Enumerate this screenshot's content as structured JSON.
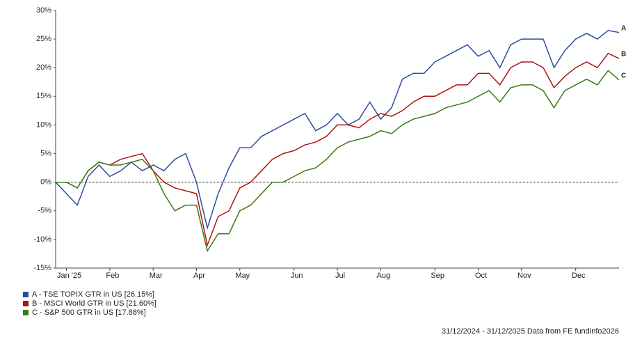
{
  "chart_data": {
    "type": "line",
    "categories": [
      null,
      "Jan '25",
      null,
      null,
      null,
      "Feb",
      null,
      null,
      null,
      "Mar",
      null,
      null,
      null,
      "Apr",
      null,
      null,
      null,
      "May",
      null,
      null,
      null,
      null,
      "Jun",
      null,
      null,
      null,
      "Jul",
      null,
      null,
      null,
      "Aug",
      null,
      null,
      null,
      null,
      "Sep",
      null,
      null,
      null,
      "Oct",
      null,
      null,
      null,
      "Nov",
      null,
      null,
      null,
      null,
      "Dec",
      null,
      null,
      null,
      null
    ],
    "series": [
      {
        "name": "A - TSE TOPIX GTR in US [26.15%]",
        "label": "A",
        "color": "#2d4d9e",
        "values": [
          0,
          -2,
          -4,
          1,
          3,
          1,
          2,
          3.5,
          2,
          3,
          2,
          4,
          5,
          0,
          -8,
          -2,
          2.5,
          6,
          6,
          8,
          9,
          10,
          11,
          12,
          9,
          10,
          12,
          10,
          11,
          14,
          11,
          13,
          18,
          19,
          19,
          21,
          22,
          23,
          24,
          22,
          23,
          20,
          24,
          25,
          25,
          25,
          20,
          23,
          25,
          26,
          25,
          26.5,
          26.15
        ]
      },
      {
        "name": "B - MSCI World GTR in US [21.60%]",
        "label": "B",
        "color": "#b0120f",
        "values": [
          0,
          0,
          -1,
          2,
          3.5,
          3,
          4,
          4.5,
          5,
          2,
          0,
          -1,
          -1.5,
          -2,
          -11,
          -6,
          -5,
          -1,
          0,
          2,
          4,
          5,
          5.5,
          6.5,
          7,
          8,
          10,
          10,
          9.5,
          11,
          12,
          11.5,
          12.5,
          14,
          15,
          15,
          16,
          17,
          17,
          19,
          19,
          17,
          20,
          21,
          21,
          20,
          16.5,
          18.5,
          20,
          21,
          20,
          22.5,
          21.6
        ]
      },
      {
        "name": "C - S&P 500 GTR in US [17.88%]",
        "label": "C",
        "color": "#3a7a12",
        "values": [
          0,
          0,
          -1,
          2,
          3.5,
          3,
          3,
          3.5,
          4,
          2,
          -2,
          -5,
          -4,
          -4,
          -12,
          -9,
          -9,
          -5,
          -4,
          -2,
          0,
          0,
          1,
          2,
          2.5,
          4,
          6,
          7,
          7.5,
          8,
          9,
          8.5,
          10,
          11,
          11.5,
          12,
          13,
          13.5,
          14,
          15,
          16,
          14,
          16.5,
          17,
          17,
          16,
          13,
          16,
          17,
          18,
          17,
          19.5,
          17.88
        ]
      }
    ],
    "ylim": [
      -15,
      30
    ],
    "yticks": [
      {
        "value": -15,
        "label": "-15%"
      },
      {
        "value": -10,
        "label": "-10%"
      },
      {
        "value": -5,
        "label": "-5%"
      },
      {
        "value": 0,
        "label": "0%"
      },
      {
        "value": 5,
        "label": "5%"
      },
      {
        "value": 10,
        "label": "10%"
      },
      {
        "value": 15,
        "label": "15%"
      },
      {
        "value": 20,
        "label": "20%"
      },
      {
        "value": 25,
        "label": "25%"
      },
      {
        "value": 30,
        "label": "30%"
      }
    ],
    "zero_line": true,
    "footer": "31/12/2024 - 31/12/2025 Data from FE fundinfo2026"
  }
}
